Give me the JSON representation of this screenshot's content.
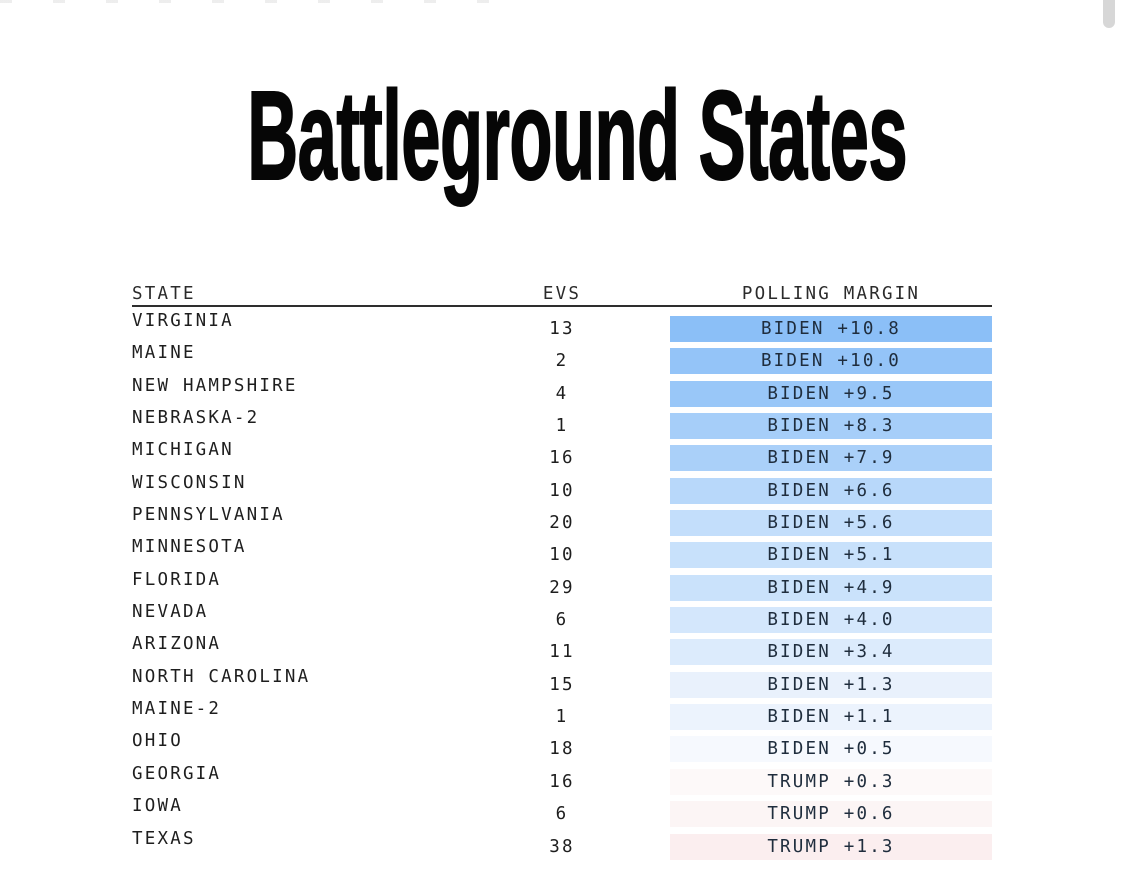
{
  "page": {
    "title": "Battleground States"
  },
  "browser": {
    "scrollbar": "vertical-scrollbar-thumb"
  },
  "table": {
    "columns": [
      "STATE",
      "EVS",
      "POLLING MARGIN"
    ],
    "rows": [
      {
        "state": "VIRGINIA",
        "evs": "13",
        "margin": "BIDEN +10.8",
        "color": "#8BBFF7"
      },
      {
        "state": "MAINE",
        "evs": "2",
        "margin": "BIDEN +10.0",
        "color": "#94C4F8"
      },
      {
        "state": "NEW HAMPSHIRE",
        "evs": "4",
        "margin": "BIDEN +9.5",
        "color": "#99C7F8"
      },
      {
        "state": "NEBRASKA-2",
        "evs": "1",
        "margin": "BIDEN +8.3",
        "color": "#A6CEF9"
      },
      {
        "state": "MICHIGAN",
        "evs": "16",
        "margin": "BIDEN +7.9",
        "color": "#AAD0F9"
      },
      {
        "state": "WISCONSIN",
        "evs": "10",
        "margin": "BIDEN +6.6",
        "color": "#B8D8FA"
      },
      {
        "state": "PENNSYLVANIA",
        "evs": "20",
        "margin": "BIDEN +5.6",
        "color": "#C3DEFB"
      },
      {
        "state": "MINNESOTA",
        "evs": "10",
        "margin": "BIDEN +5.1",
        "color": "#C8E1FB"
      },
      {
        "state": "FLORIDA",
        "evs": "29",
        "margin": "BIDEN +4.9",
        "color": "#CAE2FB"
      },
      {
        "state": "NEVADA",
        "evs": "6",
        "margin": "BIDEN +4.0",
        "color": "#D4E7FC"
      },
      {
        "state": "ARIZONA",
        "evs": "11",
        "margin": "BIDEN +3.4",
        "color": "#DCEBFC"
      },
      {
        "state": "NORTH CAROLINA",
        "evs": "15",
        "margin": "BIDEN +1.3",
        "color": "#E9F1FC"
      },
      {
        "state": "MAINE-2",
        "evs": "1",
        "margin": "BIDEN +1.1",
        "color": "#ECF3FD"
      },
      {
        "state": "OHIO",
        "evs": "18",
        "margin": "BIDEN +0.5",
        "color": "#F6F9FE"
      },
      {
        "state": "GEORGIA",
        "evs": "16",
        "margin": "TRUMP +0.3",
        "color": "#FDF9F9"
      },
      {
        "state": "IOWA",
        "evs": "6",
        "margin": "TRUMP +0.6",
        "color": "#FCF5F5"
      },
      {
        "state": "TEXAS",
        "evs": "38",
        "margin": "TRUMP +1.3",
        "color": "#FBEEEF"
      }
    ]
  },
  "chart_data": {
    "type": "table",
    "title": "Battleground States",
    "columns": [
      "STATE",
      "EVS",
      "POLLING MARGIN"
    ],
    "color_scale": {
      "biden_max": "#8BBFF7",
      "even": "#FFFFFF",
      "trump_light": "#FBEEEF"
    },
    "rows": [
      {
        "state": "VIRGINIA",
        "evs": 13,
        "leader": "BIDEN",
        "margin": 10.8
      },
      {
        "state": "MAINE",
        "evs": 2,
        "leader": "BIDEN",
        "margin": 10.0
      },
      {
        "state": "NEW HAMPSHIRE",
        "evs": 4,
        "leader": "BIDEN",
        "margin": 9.5
      },
      {
        "state": "NEBRASKA-2",
        "evs": 1,
        "leader": "BIDEN",
        "margin": 8.3
      },
      {
        "state": "MICHIGAN",
        "evs": 16,
        "leader": "BIDEN",
        "margin": 7.9
      },
      {
        "state": "WISCONSIN",
        "evs": 10,
        "leader": "BIDEN",
        "margin": 6.6
      },
      {
        "state": "PENNSYLVANIA",
        "evs": 20,
        "leader": "BIDEN",
        "margin": 5.6
      },
      {
        "state": "MINNESOTA",
        "evs": 10,
        "leader": "BIDEN",
        "margin": 5.1
      },
      {
        "state": "FLORIDA",
        "evs": 29,
        "leader": "BIDEN",
        "margin": 4.9
      },
      {
        "state": "NEVADA",
        "evs": 6,
        "leader": "BIDEN",
        "margin": 4.0
      },
      {
        "state": "ARIZONA",
        "evs": 11,
        "leader": "BIDEN",
        "margin": 3.4
      },
      {
        "state": "NORTH CAROLINA",
        "evs": 15,
        "leader": "BIDEN",
        "margin": 1.3
      },
      {
        "state": "MAINE-2",
        "evs": 1,
        "leader": "BIDEN",
        "margin": 1.1
      },
      {
        "state": "OHIO",
        "evs": 18,
        "leader": "BIDEN",
        "margin": 0.5
      },
      {
        "state": "GEORGIA",
        "evs": 16,
        "leader": "TRUMP",
        "margin": 0.3
      },
      {
        "state": "IOWA",
        "evs": 6,
        "leader": "TRUMP",
        "margin": 0.6
      },
      {
        "state": "TEXAS",
        "evs": 38,
        "leader": "TRUMP",
        "margin": 1.3
      }
    ]
  }
}
